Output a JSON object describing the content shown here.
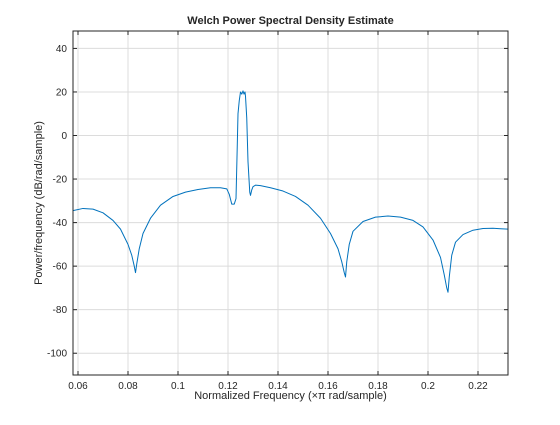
{
  "chart_data": {
    "type": "line",
    "title": "Welch Power Spectral Density Estimate",
    "xlabel": "Normalized Frequency  (×π rad/sample)",
    "ylabel": "Power/frequency (dB/rad/sample)",
    "xlim": [
      0.058,
      0.232
    ],
    "ylim": [
      -110,
      48
    ],
    "xticks": [
      0.06,
      0.08,
      0.1,
      0.12,
      0.14,
      0.16,
      0.18,
      0.2,
      0.22
    ],
    "xtick_labels": [
      "0.06",
      "0.08",
      "0.1",
      "0.12",
      "0.14",
      "0.16",
      "0.18",
      "0.2",
      "0.22"
    ],
    "yticks": [
      40,
      20,
      0,
      -20,
      -40,
      -60,
      -80,
      -100
    ],
    "ytick_labels": [
      "40",
      "20",
      "0",
      "-20",
      "-40",
      "-60",
      "-80",
      "-100"
    ],
    "grid": true,
    "line_color": "#0072bd",
    "series": [
      {
        "x": [
          0.058,
          0.062,
          0.066,
          0.07,
          0.074,
          0.077,
          0.08,
          0.0815,
          0.0825,
          0.083,
          0.0835,
          0.0845,
          0.086,
          0.089,
          0.093,
          0.098,
          0.103,
          0.108,
          0.113,
          0.117,
          0.1195,
          0.1205,
          0.1215,
          0.1225,
          0.1232,
          0.1237,
          0.124,
          0.1245,
          0.125,
          0.1255,
          0.126,
          0.1264,
          0.1268,
          0.127,
          0.1275,
          0.128,
          0.1287,
          0.129,
          0.1295,
          0.13,
          0.131,
          0.133,
          0.137,
          0.142,
          0.147,
          0.152,
          0.157,
          0.161,
          0.164,
          0.1655,
          0.1665,
          0.167,
          0.1675,
          0.1685,
          0.17,
          0.174,
          0.179,
          0.184,
          0.189,
          0.194,
          0.198,
          0.202,
          0.205,
          0.2065,
          0.2075,
          0.208,
          0.2085,
          0.2095,
          0.211,
          0.214,
          0.218,
          0.222,
          0.226,
          0.229,
          0.232
        ],
        "y": [
          -34.5,
          -33.5,
          -33.8,
          -35.5,
          -39,
          -43,
          -50,
          -55,
          -60,
          -63,
          -59,
          -52,
          -45,
          -38,
          -32,
          -28,
          -26,
          -24.8,
          -24,
          -24,
          -24.5,
          -27,
          -31.5,
          -31.5,
          -29,
          -5,
          10,
          16,
          20,
          19,
          20.5,
          19,
          20,
          18,
          8,
          -12,
          -26,
          -27.5,
          -25,
          -23.5,
          -22.8,
          -23,
          -24,
          -25.5,
          -28,
          -32,
          -38,
          -45,
          -52,
          -58,
          -63,
          -65,
          -58,
          -50,
          -44,
          -39.5,
          -37.5,
          -37,
          -37.5,
          -39,
          -42,
          -48,
          -56,
          -64,
          -70,
          -72,
          -65,
          -55,
          -49,
          -45.5,
          -43.5,
          -42.7,
          -42.6,
          -42.8,
          -43
        ]
      }
    ]
  }
}
